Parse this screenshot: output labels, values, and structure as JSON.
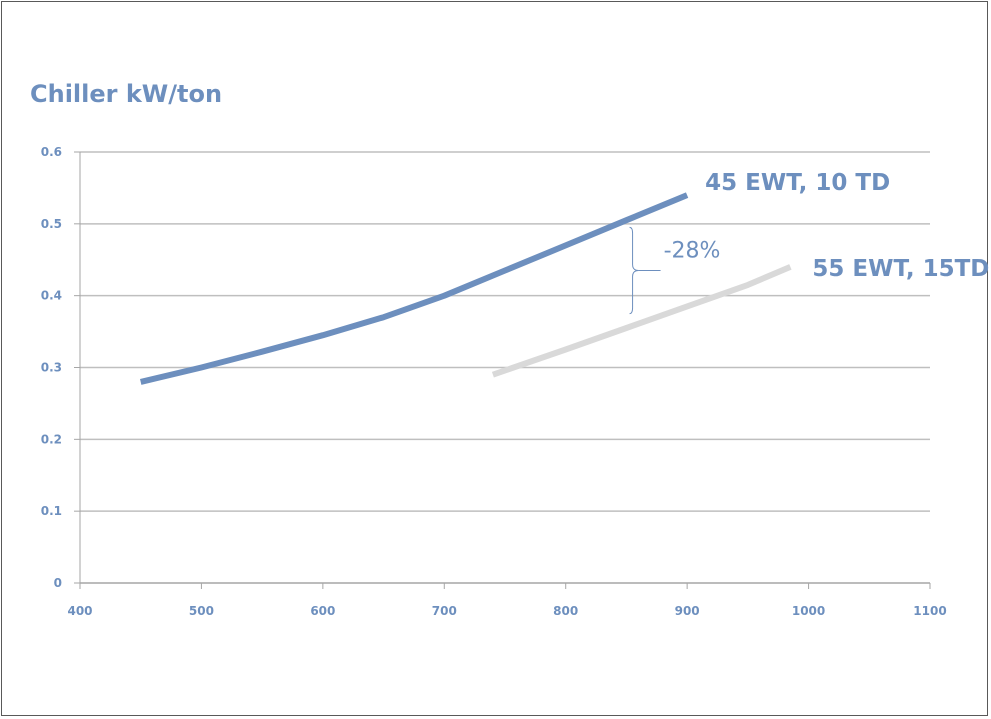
{
  "chart_data": {
    "type": "line",
    "title": "Chiller kW/ton",
    "xlim": [
      400,
      1100
    ],
    "ylim": [
      0,
      0.6
    ],
    "x_ticks": [
      "400",
      "500",
      "600",
      "700",
      "800",
      "900",
      "1000",
      "1100"
    ],
    "y_ticks": [
      "0",
      "0.1",
      "0.2",
      "0.3",
      "0.4",
      "0.5",
      "0.6"
    ],
    "grid": "horizontal",
    "series": [
      {
        "name": "45 EWT, 10 TD",
        "color": "#6d8fbe",
        "x": [
          450,
          500,
          550,
          600,
          650,
          700,
          750,
          800,
          850,
          900
        ],
        "y": [
          0.28,
          0.3,
          0.322,
          0.345,
          0.37,
          0.4,
          0.435,
          0.47,
          0.505,
          0.54
        ]
      },
      {
        "name": "55 EWT, 15TD",
        "color": "#d9d9d9",
        "x": [
          740,
          800,
          850,
          900,
          950,
          985
        ],
        "y": [
          0.29,
          0.325,
          0.355,
          0.385,
          0.415,
          0.44
        ]
      }
    ],
    "annotations": [
      {
        "text": "-28%",
        "x": 860,
        "y_range": [
          0.375,
          0.495
        ]
      }
    ],
    "colors": {
      "text": "#6d8fbe",
      "grid": "#bfbfbf",
      "axis": "#a6a6a6"
    }
  }
}
